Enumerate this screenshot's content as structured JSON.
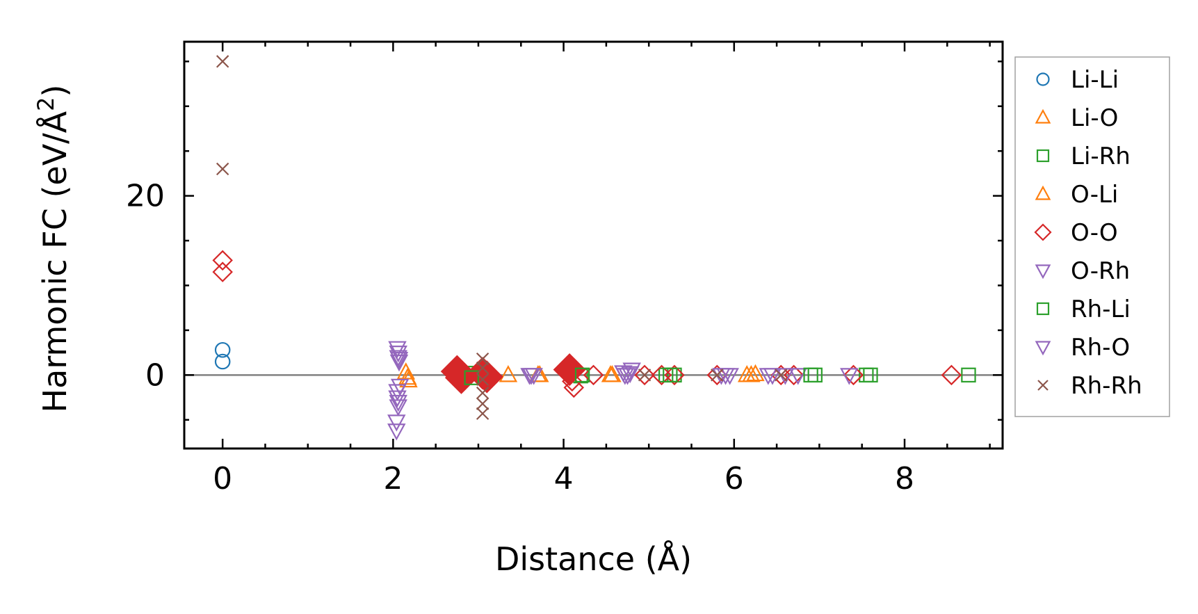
{
  "chart_data": {
    "type": "scatter",
    "title": "",
    "xlabel": "Distance (Å)",
    "ylabel_main": "Harmonic FC (eV/Å",
    "ylabel_sup": "2",
    "ylabel_close": ")",
    "xlim": [
      -0.45,
      9.15
    ],
    "ylim": [
      -8.2,
      37.2
    ],
    "xticks": [
      0,
      2,
      4,
      6,
      8
    ],
    "xtick_labels": [
      "0",
      "2",
      "4",
      "6",
      "8"
    ],
    "yticks": [
      0,
      20
    ],
    "ytick_labels": [
      "0",
      "20"
    ],
    "x_minor_step": 0.5,
    "y_minor_step": 5,
    "zero_line": true,
    "legend_position": "right",
    "series": [
      {
        "name": "Li-Li",
        "marker": "circle",
        "color": "#1f77b4",
        "x": [
          0,
          0
        ],
        "y": [
          2.8,
          1.5
        ]
      },
      {
        "name": "Li-O",
        "marker": "triangle-up",
        "color": "#ff7f0e",
        "x": [
          2.15,
          2.18,
          3.35,
          3.7,
          4.55,
          6.15,
          6.25
        ],
        "y": [
          0.3,
          -0.6,
          0,
          0,
          0,
          0,
          0.1
        ]
      },
      {
        "name": "Li-Rh",
        "marker": "square",
        "color": "#2ca02c",
        "x": [
          2.9,
          4.2,
          5.2,
          5.3,
          6.95,
          7.55,
          8.75
        ],
        "y": [
          0.2,
          -0.1,
          0,
          0,
          0,
          0,
          0
        ]
      },
      {
        "name": "O-Li",
        "marker": "triangle-up",
        "color": "#ff7f0e",
        "x": [
          2.17,
          3.72,
          4.57,
          6.2
        ],
        "y": [
          -0.3,
          0,
          0,
          0
        ]
      },
      {
        "name": "O-O",
        "marker": "diamond",
        "color": "#d62728",
        "x": [
          0,
          0,
          2.75,
          2.8,
          2.85,
          3.05,
          3.1,
          4.05,
          4.1,
          4.12,
          4.35,
          4.95,
          5.15,
          5.3,
          5.8,
          6.55,
          6.7,
          7.4,
          8.55
        ],
        "y": [
          12.8,
          11.5,
          0.6,
          -0.4,
          0,
          0.3,
          -0.3,
          0.8,
          -0.7,
          -1.4,
          0,
          0,
          0,
          0,
          0,
          0,
          0,
          0,
          0
        ],
        "filled_x": [
          2.75,
          2.8,
          3.05,
          3.1,
          4.07
        ],
        "filled_y": [
          0.4,
          -0.3,
          0.2,
          -0.2,
          0.6
        ]
      },
      {
        "name": "O-Rh",
        "marker": "triangle-down",
        "color": "#9467bd",
        "x": [
          2.05,
          2.06,
          2.07,
          2.08,
          2.05,
          2.06,
          2.04,
          3.6,
          3.65,
          4.7,
          4.75,
          4.8,
          5.85,
          5.95,
          6.4,
          6.6,
          6.75,
          7.35
        ],
        "y": [
          3.0,
          2.5,
          1.8,
          -1.2,
          -2.5,
          -3.5,
          -5.2,
          0,
          0,
          0.3,
          0,
          0.6,
          0,
          0,
          0,
          0,
          0,
          0
        ]
      },
      {
        "name": "Rh-Li",
        "marker": "square",
        "color": "#2ca02c",
        "x": [
          2.92,
          4.22,
          5.25,
          6.9,
          7.6
        ],
        "y": [
          -0.3,
          0,
          0,
          0,
          0
        ]
      },
      {
        "name": "Rh-O",
        "marker": "triangle-down",
        "color": "#9467bd",
        "x": [
          2.06,
          2.07,
          2.05,
          2.06,
          2.04,
          3.62,
          4.72,
          4.78,
          5.9,
          6.45
        ],
        "y": [
          2.0,
          1.5,
          -1.8,
          -3.0,
          -6.2,
          0,
          0,
          0.2,
          0,
          0
        ]
      },
      {
        "name": "Rh-Rh",
        "marker": "x",
        "color": "#8c564b",
        "x": [
          0,
          0,
          3.05,
          3.05,
          3.05,
          3.05,
          3.05,
          3.05,
          4.95,
          5.8,
          6.55
        ],
        "y": [
          35,
          23,
          1.8,
          0.8,
          -0.5,
          -2.0,
          -3.2,
          -4.3,
          0,
          0,
          0
        ]
      }
    ]
  }
}
